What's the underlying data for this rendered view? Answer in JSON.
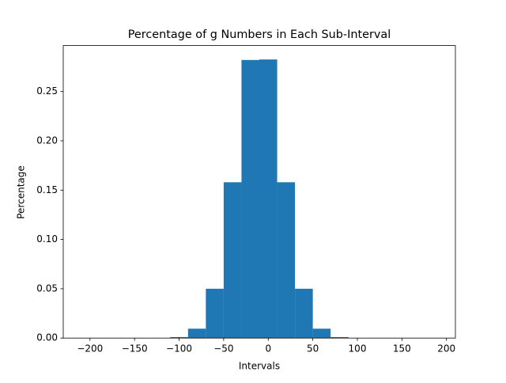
{
  "chart_data": {
    "type": "histogram",
    "title": "Percentage of g Numbers in Each Sub-Interval",
    "x_label": "Intervals",
    "y_label": "Percentage",
    "bins": [
      -210,
      -190,
      -170,
      -150,
      -130,
      -110,
      -90,
      -70,
      -50,
      -30,
      -10,
      10,
      30,
      50,
      70,
      90,
      110,
      130,
      150,
      170,
      190
    ],
    "values": [
      0,
      0,
      0,
      0,
      0,
      0.001,
      0.0095,
      0.05,
      0.158,
      0.282,
      0.2825,
      0.158,
      0.05,
      0.0095,
      0.001,
      0,
      0,
      0,
      0,
      0
    ],
    "color": "#1f77b4",
    "xlim": [
      -230,
      210
    ],
    "ylim": [
      0,
      0.2966
    ],
    "xticks": [
      {
        "value": -200,
        "label": "−200"
      },
      {
        "value": -150,
        "label": "−150"
      },
      {
        "value": -100,
        "label": "−100"
      },
      {
        "value": -50,
        "label": "−50"
      },
      0,
      50,
      100,
      150,
      200
    ],
    "yticks": [
      {
        "value": 0,
        "label": "0.00"
      },
      {
        "value": 0.05,
        "label": "0.05"
      },
      {
        "value": 0.1,
        "label": "0.10"
      },
      {
        "value": 0.15,
        "label": "0.15"
      },
      {
        "value": 0.2,
        "label": "0.20"
      },
      {
        "value": 0.25,
        "label": "0.25"
      }
    ]
  }
}
